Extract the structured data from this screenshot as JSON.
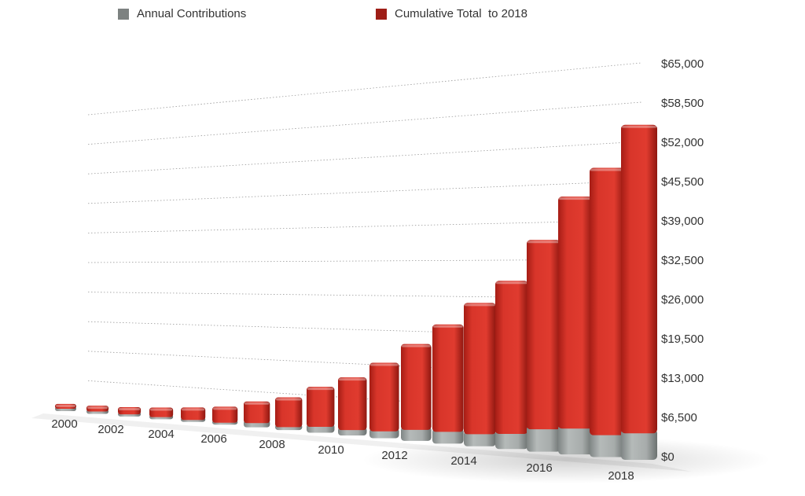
{
  "chart_data": {
    "type": "bar",
    "stacked": true,
    "categories": [
      "2000",
      "2001",
      "2002",
      "2003",
      "2004",
      "2005",
      "2006",
      "2007",
      "2008",
      "2009",
      "2010",
      "2011",
      "2012",
      "2013",
      "2014",
      "2015",
      "2016",
      "2017",
      "2018"
    ],
    "x_tick_labels": [
      "2000",
      "2002",
      "2004",
      "2006",
      "2008",
      "2010",
      "2012",
      "2014",
      "2016",
      "2018"
    ],
    "series": [
      {
        "name": "Annual Contributions",
        "color": "#8e9594",
        "values": [
          700,
          900,
          900,
          1100,
          1500,
          1800,
          3300,
          2400,
          3300,
          2800,
          3000,
          3900,
          3800,
          3600,
          4000,
          5200,
          5500,
          4500,
          5000
        ]
      },
      {
        "name": "Cumulative Total  to 2018",
        "color": "#c62a21",
        "values": [
          3000,
          3500,
          4000,
          5000,
          6000,
          7000,
          8700,
          11000,
          13500,
          16300,
          19500,
          22500,
          26000,
          29500,
          32000,
          37000,
          42500,
          46000,
          50000
        ]
      }
    ],
    "y_ticks": [
      "$0",
      "$6,500",
      "$13,000",
      "$19,500",
      "$26,000",
      "$32,500",
      "$39,000",
      "$45,500",
      "$52,000",
      "$58,500",
      "$65,000"
    ],
    "ylim": [
      0,
      65000
    ],
    "grid": true,
    "legend_position": "top"
  }
}
